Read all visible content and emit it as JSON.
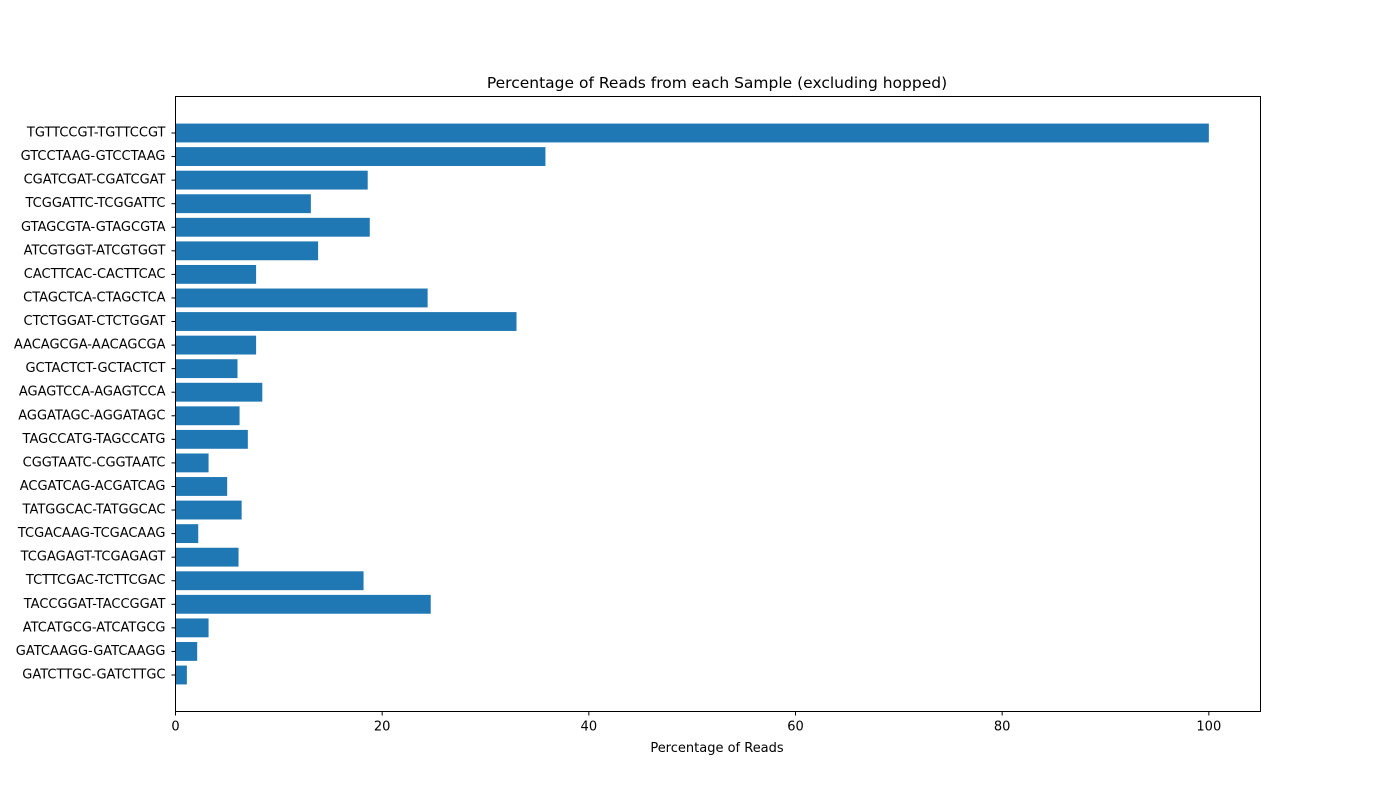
{
  "chart_data": {
    "type": "bar",
    "orientation": "horizontal",
    "title": "Percentage of Reads from each Sample (excluding hopped)",
    "xlabel": "Percentage of Reads",
    "ylabel": "",
    "xlim": [
      0,
      105
    ],
    "x_ticks": [
      0,
      20,
      40,
      60,
      80,
      100
    ],
    "grid": false,
    "bar_color": "#1f77b4",
    "categories": [
      "TGTTCCGT-TGTTCCGT",
      "GTCCTAAG-GTCCTAAG",
      "CGATCGAT-CGATCGAT",
      "TCGGATTC-TCGGATTC",
      "GTAGCGTA-GTAGCGTA",
      "ATCGTGGT-ATCGTGGT",
      "CACTTCAC-CACTTCAC",
      "CTAGCTCA-CTAGCTCA",
      "CTCTGGAT-CTCTGGAT",
      "AACAGCGA-AACAGCGA",
      "GCTACTCT-GCTACTCT",
      "AGAGTCCA-AGAGTCCA",
      "AGGATAGC-AGGATAGC",
      "TAGCCATG-TAGCCATG",
      "CGGTAATC-CGGTAATC",
      "ACGATCAG-ACGATCAG",
      "TATGGCAC-TATGGCAC",
      "TCGACAAG-TCGACAAG",
      "TCGAGAGT-TCGAGAGT",
      "TCTTCGAC-TCTTCGAC",
      "TACCGGAT-TACCGGAT",
      "ATCATGCG-ATCATGCG",
      "GATCAAGG-GATCAAGG",
      "GATCTTGC-GATCTTGC"
    ],
    "values": [
      100,
      35.8,
      18.6,
      13.1,
      18.8,
      13.8,
      7.8,
      24.4,
      33.0,
      7.8,
      6.0,
      8.4,
      6.2,
      7.0,
      3.2,
      5.0,
      6.4,
      2.2,
      6.1,
      18.2,
      24.7,
      3.2,
      2.1,
      1.1
    ]
  }
}
